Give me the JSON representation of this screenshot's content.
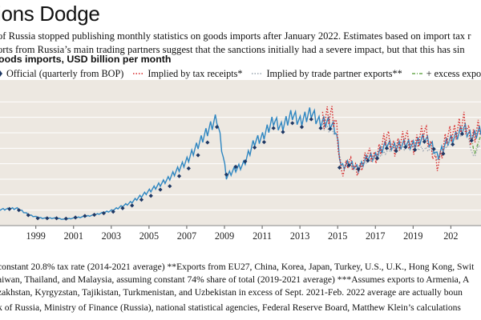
{
  "header": {
    "title": "ions Dodge",
    "subtitle_line1": "of Russia stopped publishing monthly statistics on goods imports after January 2022. Estimates based on import tax r",
    "subtitle_line2": "orts from Russia’s main trading partners suggest that the sanctions initially had a severe impact, but that this has sin",
    "chart_label": "oods imports, USD billion per month"
  },
  "footer": {
    "note_line1": "constant 20.8% tax rate (2014-2021 average) **Exports from EU27, China, Korea, Japan, Turkey, U.S., U.K., Hong Kong, Swit",
    "note_line2": "aiwan, Thailand, and Malaysia, assuming constant 74% share of total (2019-2021 average) ***Assumes exports to Armenia, A",
    "note_line3": "zakhstan, Kyrgyzstan, Tajikistan, Turkmenistan, and Uzbekistan in excess of Sept. 2021-Feb. 2022 average are actually boun",
    "source": "k of Russia, Ministry of Finance (Russia), national statistical agencies, Federal Reserve Board, Matthew Klein’s calculations"
  },
  "chart_data": {
    "type": "line",
    "title": "",
    "xlabel": "",
    "ylabel": "",
    "xlim": [
      1997.1,
      2022.6
    ],
    "ylim": [
      0,
      36
    ],
    "x_ticks": [
      "1999",
      "2001",
      "2003",
      "2005",
      "2007",
      "2009",
      "2011",
      "2013",
      "2015",
      "2017",
      "2019",
      "202"
    ],
    "grid": true,
    "legend_position": "top",
    "colors": {
      "official": "#1f3864",
      "monthly": "#2e86c1",
      "tax": "#d62728",
      "partner": "#9aa5b1",
      "excess": "#6aa84f"
    },
    "series": [
      {
        "name": "Official (quarterly from BOP)",
        "style": "diamond-markers"
      },
      {
        "name": "Implied by tax receipts*",
        "style": "dotted"
      },
      {
        "name": "Implied by trade partner exports**",
        "style": "dotted"
      },
      {
        "name": "+ excess exports",
        "style": "dash-dot"
      }
    ],
    "monthly_anchors": [
      [
        1997.1,
        4.1
      ],
      [
        1998.0,
        4.4
      ],
      [
        1998.7,
        2.6
      ],
      [
        1999.3,
        1.9
      ],
      [
        2000.0,
        1.9
      ],
      [
        2000.5,
        1.6
      ],
      [
        2001.0,
        1.9
      ],
      [
        2002.0,
        2.6
      ],
      [
        2003.0,
        3.8
      ],
      [
        2004.0,
        5.8
      ],
      [
        2005.0,
        8.8
      ],
      [
        2006.0,
        11.8
      ],
      [
        2007.0,
        16.5
      ],
      [
        2008.0,
        23.5
      ],
      [
        2008.6,
        27.5
      ],
      [
        2009.1,
        12.5
      ],
      [
        2009.5,
        14.2
      ],
      [
        2010.0,
        15.5
      ],
      [
        2010.6,
        21.5
      ],
      [
        2011.0,
        22.5
      ],
      [
        2011.6,
        27.0
      ],
      [
        2012.0,
        25.0
      ],
      [
        2012.6,
        28.5
      ],
      [
        2013.0,
        26.5
      ],
      [
        2013.6,
        29.0
      ],
      [
        2014.0,
        26.5
      ],
      [
        2014.5,
        26.5
      ],
      [
        2014.9,
        24.5
      ],
      [
        2015.2,
        14.8
      ],
      [
        2015.6,
        16.0
      ],
      [
        2016.1,
        14.5
      ],
      [
        2016.6,
        17.5
      ],
      [
        2017.0,
        17.5
      ],
      [
        2017.6,
        21.0
      ],
      [
        2018.0,
        20.0
      ],
      [
        2018.6,
        21.0
      ],
      [
        2019.0,
        20.5
      ],
      [
        2019.6,
        22.5
      ],
      [
        2020.0,
        20.5
      ],
      [
        2020.3,
        17.5
      ],
      [
        2020.8,
        21.5
      ],
      [
        2021.2,
        22.5
      ],
      [
        2021.7,
        25.0
      ],
      [
        2022.1,
        22.5
      ],
      [
        2022.6,
        24.5
      ]
    ],
    "official_quarterly": [
      [
        1997.6,
        4.3
      ],
      [
        1998.1,
        4.0
      ],
      [
        1998.6,
        2.7
      ],
      [
        1999.1,
        1.9
      ],
      [
        1999.6,
        1.9
      ],
      [
        2000.1,
        1.9
      ],
      [
        2000.6,
        1.8
      ],
      [
        2001.1,
        2.1
      ],
      [
        2001.6,
        2.5
      ],
      [
        2002.1,
        2.8
      ],
      [
        2002.6,
        3.2
      ],
      [
        2003.1,
        3.6
      ],
      [
        2003.6,
        4.5
      ],
      [
        2004.1,
        5.2
      ],
      [
        2004.6,
        6.7
      ],
      [
        2005.1,
        7.7
      ],
      [
        2005.6,
        9.3
      ],
      [
        2006.1,
        10.2
      ],
      [
        2006.6,
        12.8
      ],
      [
        2007.1,
        14.8
      ],
      [
        2007.6,
        18.2
      ],
      [
        2008.1,
        21.5
      ],
      [
        2008.6,
        25.5
      ],
      [
        2009.1,
        13.2
      ],
      [
        2009.6,
        15.2
      ],
      [
        2010.1,
        16.6
      ],
      [
        2010.6,
        20.2
      ],
      [
        2011.1,
        21.6
      ],
      [
        2011.6,
        25.2
      ],
      [
        2012.1,
        24.2
      ],
      [
        2012.6,
        26.5
      ],
      [
        2013.1,
        25.5
      ],
      [
        2013.6,
        27.5
      ],
      [
        2014.1,
        25.2
      ],
      [
        2014.6,
        25.0
      ],
      [
        2015.1,
        15.0
      ],
      [
        2015.6,
        15.6
      ],
      [
        2016.1,
        14.6
      ],
      [
        2016.6,
        16.8
      ],
      [
        2017.1,
        17.4
      ],
      [
        2017.6,
        20.0
      ],
      [
        2018.1,
        19.3
      ],
      [
        2018.6,
        20.3
      ],
      [
        2019.1,
        19.6
      ],
      [
        2019.6,
        21.7
      ],
      [
        2020.1,
        19.8
      ],
      [
        2020.6,
        18.6
      ],
      [
        2021.1,
        21.0
      ],
      [
        2021.6,
        23.7
      ],
      [
        2022.1,
        22.0
      ]
    ],
    "tax_anchors": [
      [
        2014.2,
        26.5
      ],
      [
        2014.6,
        28.5
      ],
      [
        2014.9,
        26.5
      ],
      [
        2015.2,
        13.0
      ],
      [
        2015.6,
        16.5
      ],
      [
        2016.1,
        13.5
      ],
      [
        2016.6,
        18.5
      ],
      [
        2017.0,
        17.0
      ],
      [
        2017.6,
        23.0
      ],
      [
        2018.0,
        19.0
      ],
      [
        2018.6,
        23.0
      ],
      [
        2019.0,
        19.5
      ],
      [
        2019.6,
        24.5
      ],
      [
        2020.0,
        19.0
      ],
      [
        2020.3,
        15.0
      ],
      [
        2020.8,
        23.0
      ],
      [
        2021.2,
        23.5
      ],
      [
        2021.7,
        26.5
      ],
      [
        2022.1,
        21.5
      ],
      [
        2022.6,
        26.0
      ]
    ],
    "partner_anchors": [
      [
        2014.2,
        25.5
      ],
      [
        2014.9,
        24.0
      ],
      [
        2015.2,
        15.5
      ],
      [
        2016.0,
        15.0
      ],
      [
        2017.0,
        17.5
      ],
      [
        2018.0,
        20.0
      ],
      [
        2019.0,
        20.0
      ],
      [
        2020.0,
        19.5
      ],
      [
        2020.3,
        17.0
      ],
      [
        2021.0,
        22.0
      ],
      [
        2021.8,
        24.5
      ],
      [
        2022.2,
        17.5
      ],
      [
        2022.6,
        21.5
      ]
    ],
    "excess_anchors": [
      [
        2022.1,
        22.5
      ],
      [
        2022.25,
        18.5
      ],
      [
        2022.6,
        23.5
      ]
    ]
  }
}
